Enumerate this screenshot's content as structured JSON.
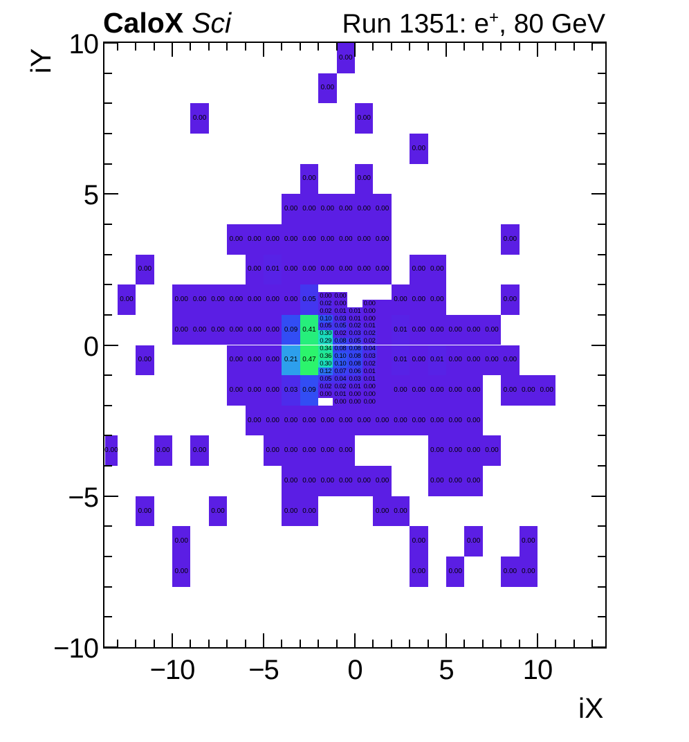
{
  "header": {
    "title_left_bold": "CaloX",
    "title_left_italic": "Sci",
    "title_right_main": "Run 1351: e",
    "title_right_sup": "+",
    "title_right_rest": ", 80 GeV"
  },
  "axes": {
    "x_title": "iX",
    "y_title": "iY",
    "x_tick_values": [
      -10,
      -5,
      0,
      5,
      10
    ],
    "x_tick_labels": [
      "−10",
      "−5",
      "0",
      "5",
      "10"
    ],
    "y_tick_values": [
      -10,
      -5,
      0,
      5,
      10
    ],
    "y_tick_labels": [
      "−10",
      "−5",
      "0",
      "5",
      "10"
    ],
    "x_range": [
      -13.7,
      13.7
    ],
    "y_range": [
      -10,
      10
    ]
  },
  "chart_data": {
    "type": "heatmap",
    "title": "CaloX Sci",
    "subtitle": "Run 1351: e+, 80 GeV",
    "xlabel": "iX",
    "ylabel": "iY",
    "xlim": [
      -13.7,
      13.7
    ],
    "ylim": [
      -10,
      10
    ],
    "z_range_estimated": [
      0,
      0.5
    ],
    "grid": false,
    "legend_position": "none",
    "palette_anchors": [
      [
        0.0,
        "#5B1EE4"
      ],
      [
        0.02,
        "#5226E8"
      ],
      [
        0.04,
        "#4730ED"
      ],
      [
        0.06,
        "#3F3BF1"
      ],
      [
        0.08,
        "#3545F3"
      ],
      [
        0.1,
        "#2E55F5"
      ],
      [
        0.12,
        "#2A71F3"
      ],
      [
        0.21,
        "#2D9FEC"
      ],
      [
        0.29,
        "#1ED9C4"
      ],
      [
        0.3,
        "#1BDDBE"
      ],
      [
        0.34,
        "#1FE69E"
      ],
      [
        0.36,
        "#23E992"
      ],
      [
        0.41,
        "#26EE7B"
      ],
      [
        0.47,
        "#2CF46C"
      ]
    ],
    "coarse_cell_size": [
      1.0,
      1.0
    ],
    "cells": [
      [
        -0.5,
        9.5,
        "0.00"
      ],
      [
        -1.5,
        8.5,
        "0.00"
      ],
      [
        -8.5,
        7.5,
        "0.00"
      ],
      [
        0.5,
        7.5,
        "0.00"
      ],
      [
        3.5,
        6.5,
        "0.00"
      ],
      [
        -2.5,
        5.5,
        "0.00"
      ],
      [
        0.5,
        5.5,
        "0.00"
      ],
      [
        -3.5,
        4.5,
        "0.00"
      ],
      [
        -2.5,
        4.5,
        "0.00"
      ],
      [
        -1.5,
        4.5,
        "0.00"
      ],
      [
        -0.5,
        4.5,
        "0.00"
      ],
      [
        0.5,
        4.5,
        "0.00"
      ],
      [
        1.5,
        4.5,
        "0.00"
      ],
      [
        -6.5,
        3.5,
        "0.00"
      ],
      [
        -5.5,
        3.5,
        "0.00"
      ],
      [
        -4.5,
        3.5,
        "0.00"
      ],
      [
        -3.5,
        3.5,
        "0.00"
      ],
      [
        -2.5,
        3.5,
        "0.00"
      ],
      [
        -1.5,
        3.5,
        "0.00"
      ],
      [
        -0.5,
        3.5,
        "0.00"
      ],
      [
        0.5,
        3.5,
        "0.00"
      ],
      [
        1.5,
        3.5,
        "0.00"
      ],
      [
        8.5,
        3.5,
        "0.00"
      ],
      [
        -11.5,
        2.5,
        "0.00"
      ],
      [
        -5.5,
        2.5,
        "0.00"
      ],
      [
        -4.5,
        2.5,
        "0.01"
      ],
      [
        -3.5,
        2.5,
        "0.00"
      ],
      [
        -2.5,
        2.5,
        "0.00"
      ],
      [
        -1.5,
        2.5,
        "0.00"
      ],
      [
        -0.5,
        2.5,
        "0.00"
      ],
      [
        0.5,
        2.5,
        "0.00"
      ],
      [
        1.5,
        2.5,
        "0.00"
      ],
      [
        3.5,
        2.5,
        "0.00"
      ],
      [
        4.5,
        2.5,
        "0.00"
      ],
      [
        -12.5,
        1.5,
        "0.00"
      ],
      [
        -9.5,
        1.5,
        "0.00"
      ],
      [
        -8.5,
        1.5,
        "0.00"
      ],
      [
        -7.5,
        1.5,
        "0.00"
      ],
      [
        -6.5,
        1.5,
        "0.00"
      ],
      [
        -5.5,
        1.5,
        "0.00"
      ],
      [
        -4.5,
        1.5,
        "0.00"
      ],
      [
        -3.5,
        1.5,
        "0.00"
      ],
      [
        -2.5,
        1.5,
        "0.05"
      ],
      [
        2.5,
        1.5,
        "0.00"
      ],
      [
        3.5,
        1.5,
        "0.00"
      ],
      [
        4.5,
        1.5,
        "0.00"
      ],
      [
        8.5,
        1.5,
        "0.00"
      ],
      [
        -9.5,
        0.5,
        "0.00"
      ],
      [
        -8.5,
        0.5,
        "0.00"
      ],
      [
        -7.5,
        0.5,
        "0.00"
      ],
      [
        -6.5,
        0.5,
        "0.00"
      ],
      [
        -5.5,
        0.5,
        "0.00"
      ],
      [
        -4.5,
        0.5,
        "0.00"
      ],
      [
        -3.5,
        0.5,
        "0.09"
      ],
      [
        -2.5,
        0.5,
        "0.41"
      ],
      [
        2.5,
        0.5,
        "0.01"
      ],
      [
        3.5,
        0.5,
        "0.00"
      ],
      [
        4.5,
        0.5,
        "0.00"
      ],
      [
        5.5,
        0.5,
        "0.00"
      ],
      [
        6.5,
        0.5,
        "0.00"
      ],
      [
        7.5,
        0.5,
        "0.00"
      ],
      [
        -11.5,
        -0.5,
        "0.00"
      ],
      [
        -6.5,
        -0.5,
        "0.00"
      ],
      [
        -5.5,
        -0.5,
        "0.00"
      ],
      [
        -4.5,
        -0.5,
        "0.00"
      ],
      [
        -3.5,
        -0.5,
        "0.21"
      ],
      [
        -2.5,
        -0.5,
        "0.47"
      ],
      [
        2.5,
        -0.5,
        "0.01"
      ],
      [
        3.5,
        -0.5,
        "0.00"
      ],
      [
        4.5,
        -0.5,
        "0.01"
      ],
      [
        5.5,
        -0.5,
        "0.00"
      ],
      [
        6.5,
        -0.5,
        "0.00"
      ],
      [
        7.5,
        -0.5,
        "0.00"
      ],
      [
        8.5,
        -0.5,
        "0.00"
      ],
      [
        -6.5,
        -1.5,
        "0.00"
      ],
      [
        -5.5,
        -1.5,
        "0.00"
      ],
      [
        -4.5,
        -1.5,
        "0.00"
      ],
      [
        -3.5,
        -1.5,
        "0.03"
      ],
      [
        -2.5,
        -1.5,
        "0.09"
      ],
      [
        2.5,
        -1.5,
        "0.00"
      ],
      [
        3.5,
        -1.5,
        "0.00"
      ],
      [
        4.5,
        -1.5,
        "0.00"
      ],
      [
        5.5,
        -1.5,
        "0.00"
      ],
      [
        6.5,
        -1.5,
        "0.00"
      ],
      [
        8.5,
        -1.5,
        "0.00"
      ],
      [
        9.5,
        -1.5,
        "0.00"
      ],
      [
        10.5,
        -1.5,
        "0.00"
      ],
      [
        -5.5,
        -2.5,
        "0.00"
      ],
      [
        -4.5,
        -2.5,
        "0.00"
      ],
      [
        -3.5,
        -2.5,
        "0.00"
      ],
      [
        -2.5,
        -2.5,
        "0.00"
      ],
      [
        -1.5,
        -2.5,
        "0.00"
      ],
      [
        -0.5,
        -2.5,
        "0.00"
      ],
      [
        0.5,
        -2.5,
        "0.00"
      ],
      [
        1.5,
        -2.5,
        "0.00"
      ],
      [
        2.5,
        -2.5,
        "0.00"
      ],
      [
        3.5,
        -2.5,
        "0.00"
      ],
      [
        4.5,
        -2.5,
        "0.00"
      ],
      [
        5.5,
        -2.5,
        "0.00"
      ],
      [
        6.5,
        -2.5,
        "0.00"
      ],
      [
        -13.5,
        -3.5,
        "0.00"
      ],
      [
        -10.5,
        -3.5,
        "0.00"
      ],
      [
        -8.5,
        -3.5,
        "0.00"
      ],
      [
        -4.5,
        -3.5,
        "0.00"
      ],
      [
        -3.5,
        -3.5,
        "0.00"
      ],
      [
        -2.5,
        -3.5,
        "0.00"
      ],
      [
        -1.5,
        -3.5,
        "0.00"
      ],
      [
        -0.5,
        -3.5,
        "0.00"
      ],
      [
        4.5,
        -3.5,
        "0.00"
      ],
      [
        5.5,
        -3.5,
        "0.00"
      ],
      [
        6.5,
        -3.5,
        "0.00"
      ],
      [
        7.5,
        -3.5,
        "0.00"
      ],
      [
        -3.5,
        -4.5,
        "0.00"
      ],
      [
        -2.5,
        -4.5,
        "0.00"
      ],
      [
        -1.5,
        -4.5,
        "0.00"
      ],
      [
        -0.5,
        -4.5,
        "0.00"
      ],
      [
        0.5,
        -4.5,
        "0.00"
      ],
      [
        1.5,
        -4.5,
        "0.00"
      ],
      [
        4.5,
        -4.5,
        "0.00"
      ],
      [
        5.5,
        -4.5,
        "0.00"
      ],
      [
        6.5,
        -4.5,
        "0.00"
      ],
      [
        -11.5,
        -5.5,
        "0.00"
      ],
      [
        -7.5,
        -5.5,
        "0.00"
      ],
      [
        -3.5,
        -5.5,
        "0.00"
      ],
      [
        -2.5,
        -5.5,
        "0.00"
      ],
      [
        1.5,
        -5.5,
        "0.00"
      ],
      [
        2.5,
        -5.5,
        "0.00"
      ],
      [
        -9.5,
        -6.5,
        "0.00"
      ],
      [
        3.5,
        -6.5,
        "0.00"
      ],
      [
        6.5,
        -6.5,
        "0.00"
      ],
      [
        9.5,
        -6.5,
        "0.00"
      ],
      [
        -9.5,
        -7.5,
        "0.00"
      ],
      [
        3.5,
        -7.5,
        "0.00"
      ],
      [
        5.5,
        -7.5,
        "0.00"
      ],
      [
        8.5,
        -7.5,
        "0.00"
      ],
      [
        9.5,
        -7.5,
        "0.00"
      ]
    ],
    "fine_grid": {
      "x_left": -2.0,
      "col_width": 0.8,
      "y_top": 1.75,
      "row_height": 0.25,
      "rows": [
        [
          "0.00",
          "0.00",
          null,
          null,
          null
        ],
        [
          "0.02",
          "0.00",
          null,
          "0.00",
          ""
        ],
        [
          "0.02",
          "0.01",
          "0.01",
          "0.00",
          ""
        ],
        [
          "0.10",
          "0.03",
          "0.01",
          "0.00",
          ""
        ],
        [
          "0.05",
          "0.05",
          "0.02",
          "0.01",
          ""
        ],
        [
          "0.30",
          "0.02",
          "0.03",
          "0.02",
          ""
        ],
        [
          "0.29",
          "0.08",
          "0.05",
          "0.02",
          ""
        ],
        [
          "0.34",
          "0.08",
          "0.08",
          "0.04",
          ""
        ],
        [
          "0.36",
          "0.10",
          "0.08",
          "0.03",
          ""
        ],
        [
          "0.30",
          "0.10",
          "0.08",
          "0.02",
          ""
        ],
        [
          "0.12",
          "0.07",
          "0.06",
          "0.01",
          ""
        ],
        [
          "0.05",
          "0.04",
          "0.03",
          "0.01",
          ""
        ],
        [
          "0.02",
          "0.02",
          "0.01",
          "0.00",
          ""
        ],
        [
          "0.00",
          "0.01",
          "0.00",
          "0.00",
          ""
        ],
        [
          null,
          "0.00",
          "0.00",
          "0.00",
          ""
        ]
      ]
    }
  }
}
